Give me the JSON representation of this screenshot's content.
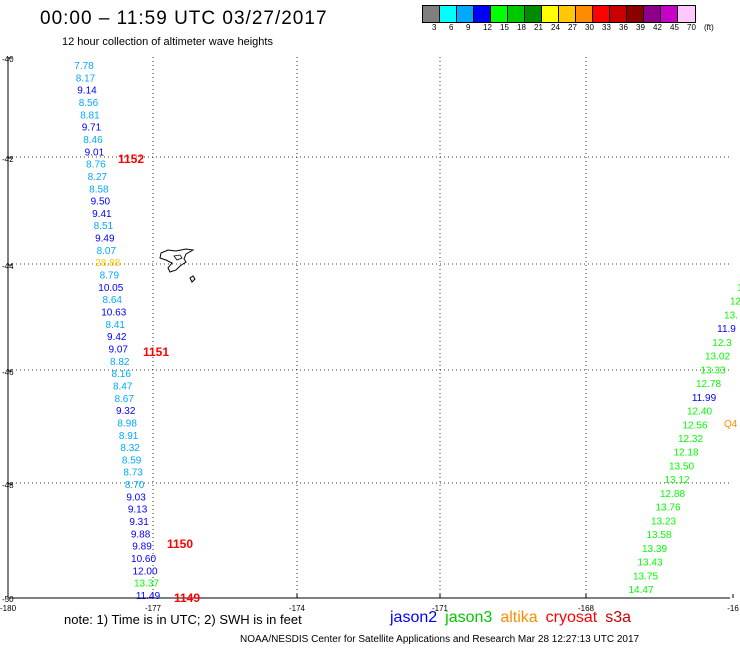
{
  "title": "00:00 – 11:59 UTC 03/27/2017",
  "subtitle": "12 hour collection of altimeter wave heights",
  "colorbar": {
    "unit": "(ft)",
    "labels": [
      "3",
      "6",
      "9",
      "12",
      "15",
      "18",
      "21",
      "24",
      "27",
      "30",
      "33",
      "36",
      "39",
      "42",
      "45",
      "70"
    ],
    "colors": [
      "#7f7f7f",
      "#00ffff",
      "#00a8ff",
      "#0000ff",
      "#00ff00",
      "#00c800",
      "#008c00",
      "#ffff00",
      "#ffc800",
      "#ff8c00",
      "#ff0000",
      "#c80000",
      "#8c0000",
      "#8c008c",
      "#c800c8",
      "#ffc8ff"
    ]
  },
  "lat_labels": [
    "-40",
    "-42",
    "-44",
    "-46",
    "-48",
    "-50"
  ],
  "lon_labels": [
    "-180",
    "-177",
    "-174",
    "-171",
    "-168",
    "-16"
  ],
  "track_west_values": [
    {
      "v": "7.78",
      "c": "#00a8ff"
    },
    {
      "v": "8.17",
      "c": "#00a8ff"
    },
    {
      "v": "9.14",
      "c": "#0000ff"
    },
    {
      "v": "8.56",
      "c": "#00a8ff"
    },
    {
      "v": "8.81",
      "c": "#00a8ff"
    },
    {
      "v": "9.71",
      "c": "#0000ff"
    },
    {
      "v": "8.46",
      "c": "#00a8ff"
    },
    {
      "v": "9.01",
      "c": "#0000ff"
    },
    {
      "v": "8.76",
      "c": "#00a8ff"
    },
    {
      "v": "8.27",
      "c": "#00a8ff"
    },
    {
      "v": "8.58",
      "c": "#00a8ff"
    },
    {
      "v": "9.50",
      "c": "#0000ff"
    },
    {
      "v": "9.41",
      "c": "#0000ff"
    },
    {
      "v": "8.51",
      "c": "#00a8ff"
    },
    {
      "v": "9.49",
      "c": "#0000ff"
    },
    {
      "v": "8.07",
      "c": "#00a8ff"
    },
    {
      "v": "28.88",
      "c": "#ffc800"
    },
    {
      "v": "8.79",
      "c": "#00a8ff"
    },
    {
      "v": "10.05",
      "c": "#0000ff"
    },
    {
      "v": "8.64",
      "c": "#00a8ff"
    },
    {
      "v": "10.63",
      "c": "#0000ff"
    },
    {
      "v": "8.41",
      "c": "#00a8ff"
    },
    {
      "v": "9.42",
      "c": "#0000ff"
    },
    {
      "v": "9.07",
      "c": "#0000ff"
    },
    {
      "v": "8.82",
      "c": "#00a8ff"
    },
    {
      "v": "8.16",
      "c": "#00a8ff"
    },
    {
      "v": "8.47",
      "c": "#00a8ff"
    },
    {
      "v": "8.67",
      "c": "#00a8ff"
    },
    {
      "v": "9.32",
      "c": "#0000ff"
    },
    {
      "v": "8.98",
      "c": "#00a8ff"
    },
    {
      "v": "8.91",
      "c": "#00a8ff"
    },
    {
      "v": "8.32",
      "c": "#00a8ff"
    },
    {
      "v": "8.59",
      "c": "#00a8ff"
    },
    {
      "v": "8.73",
      "c": "#00a8ff"
    },
    {
      "v": "8.70",
      "c": "#00a8ff"
    },
    {
      "v": "9.03",
      "c": "#0000ff"
    },
    {
      "v": "9.13",
      "c": "#0000ff"
    },
    {
      "v": "9.31",
      "c": "#0000ff"
    },
    {
      "v": "9.88",
      "c": "#0000ff"
    },
    {
      "v": "9.89",
      "c": "#0000ff"
    },
    {
      "v": "10.60",
      "c": "#0000ff"
    },
    {
      "v": "12.00",
      "c": "#0000ff"
    },
    {
      "v": "13.37",
      "c": "#00ff00"
    },
    {
      "v": "11.49",
      "c": "#0000ff"
    }
  ],
  "track_east_values": [
    {
      "v": "1",
      "c": "#00ff00"
    },
    {
      "v": "12",
      "c": "#00ff00"
    },
    {
      "v": "13.",
      "c": "#00ff00"
    },
    {
      "v": "11.9",
      "c": "#0000ff"
    },
    {
      "v": "12.3",
      "c": "#00ff00"
    },
    {
      "v": "13.02",
      "c": "#00ff00"
    },
    {
      "v": "13.33",
      "c": "#00ff00"
    },
    {
      "v": "12.78",
      "c": "#00ff00"
    },
    {
      "v": "11.99",
      "c": "#0000ff"
    },
    {
      "v": "12.40",
      "c": "#00ff00"
    },
    {
      "v": "12.56",
      "c": "#00ff00"
    },
    {
      "v": "12.32",
      "c": "#00ff00"
    },
    {
      "v": "12.18",
      "c": "#00ff00"
    },
    {
      "v": "13.50",
      "c": "#00ff00"
    },
    {
      "v": "13.12",
      "c": "#00ff00"
    },
    {
      "v": "12.88",
      "c": "#00ff00"
    },
    {
      "v": "13.76",
      "c": "#00ff00"
    },
    {
      "v": "13.23",
      "c": "#00ff00"
    },
    {
      "v": "13.58",
      "c": "#00ff00"
    },
    {
      "v": "13.39",
      "c": "#00ff00"
    },
    {
      "v": "13.43",
      "c": "#00ff00"
    },
    {
      "v": "13.75",
      "c": "#00ff00"
    },
    {
      "v": "14.47",
      "c": "#00ff00"
    }
  ],
  "east_partial_value": {
    "v": "Q4",
    "c": "#ff8c00"
  },
  "time_markers": [
    "1152",
    "1151",
    "1150",
    "1149"
  ],
  "note": "note: 1) Time is in UTC; 2) SWH is in feet",
  "legend": [
    {
      "label": "jason2",
      "color": "#0000ff"
    },
    {
      "label": "jason3",
      "color": "#00c800"
    },
    {
      "label": "altika",
      "color": "#ff8c00"
    },
    {
      "label": "cryosat",
      "color": "#ff0000"
    },
    {
      "label": "s3a",
      "color": "#c80000"
    }
  ],
  "credit": "NOAA/NESDIS Center for Satellite Applications and Research   Mar 28 12:27:13 UTC 2017"
}
